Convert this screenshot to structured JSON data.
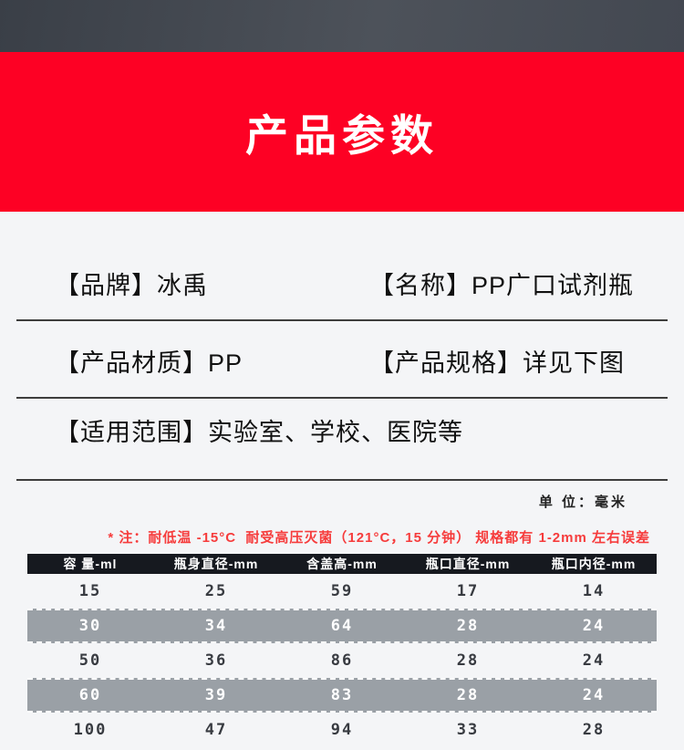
{
  "colors": {
    "banner_red": "#fd0124",
    "top_band_gray": "#42474f",
    "page_bg": "#f4f5f7",
    "table_header_bg": "#16191f",
    "highlight_row_bg": "#9aa0a6",
    "note_red": "#f63c3c",
    "divider": "#3d3d3d"
  },
  "banner": {
    "title": "产品参数"
  },
  "specs": {
    "brand": "【品牌】冰禹",
    "name": "【名称】PP广口试剂瓶",
    "material": "【产品材质】PP",
    "specification": "【产品规格】详见下图",
    "application": "【适用范围】实验室、学校、医院等"
  },
  "unit_label": "单 位：毫米",
  "note": "* 注：耐低温 -15°C  耐受高压灭菌（121°C，15 分钟） 规格都有 1-2mm 左右误差",
  "chart_data": {
    "type": "table",
    "title": "产品参数",
    "columns": [
      "容 量-ml",
      "瓶身直径-mm",
      "含盖高-mm",
      "瓶口直径-mm",
      "瓶口内径-mm"
    ],
    "rows": [
      [
        "15",
        "25",
        "59",
        "17",
        "14"
      ],
      [
        "30",
        "34",
        "64",
        "28",
        "24"
      ],
      [
        "50",
        "36",
        "86",
        "28",
        "24"
      ],
      [
        "60",
        "39",
        "83",
        "28",
        "24"
      ],
      [
        "100",
        "47",
        "94",
        "33",
        "28"
      ]
    ],
    "highlighted_rows": [
      1,
      3
    ]
  }
}
